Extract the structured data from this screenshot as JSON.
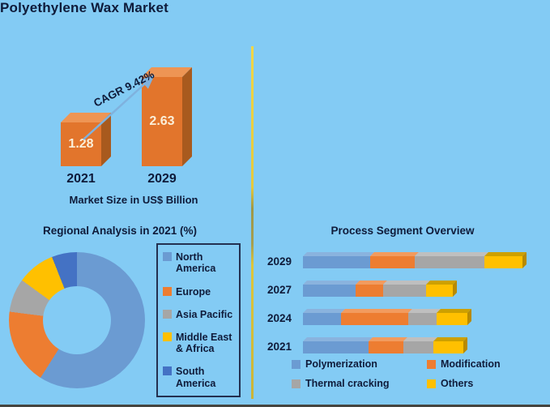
{
  "header": {
    "title": "Polyethylene Wax Market"
  },
  "colors": {
    "background": "#83CBF4",
    "text": "#0F1B3A",
    "divider": "#E6C93C",
    "arrow": "#7FB2DE",
    "legend_border": "#233050"
  },
  "market": {
    "cagr_label": "CAGR 9.42%",
    "caption": "Market Size in US$ Billion",
    "value_text_color": "#FBEFD9"
  },
  "regional": {
    "title": "Regional Analysis in 2021 (%)"
  },
  "process": {
    "title": "Process Segment Overview"
  },
  "chart_data": [
    {
      "type": "bar",
      "title": "Market Size in US$ Billion",
      "categories": [
        "2021",
        "2029"
      ],
      "values": [
        1.28,
        2.63
      ],
      "unit": "US$ Billion",
      "annotation": "CAGR 9.42%",
      "bar_colors": {
        "front": "#E2752C",
        "top": "#EE9554",
        "side": "#A85A1E"
      }
    },
    {
      "type": "pie",
      "subtype": "donut",
      "title": "Regional Analysis in 2021 (%)",
      "labels": [
        "North America",
        "Europe",
        "Asia Pacific",
        "Middle East & Africa",
        "South America"
      ],
      "values_pct_est": [
        59,
        18,
        8,
        9,
        6
      ],
      "colors": [
        "#6B9BD2",
        "#ED7D31",
        "#A6A6A6",
        "#FFC000",
        "#4472C4"
      ],
      "legend_position": "right"
    },
    {
      "type": "bar",
      "subtype": "horizontal-stacked",
      "title": "Process Segment Overview",
      "categories": [
        "2029",
        "2027",
        "2024",
        "2021"
      ],
      "series": [
        {
          "name": "Polymerization",
          "color": "#6B9BD2",
          "top": "#8AB3DE",
          "side": "#4E7FB8",
          "values": [
            83,
            65,
            47,
            81
          ]
        },
        {
          "name": "Modification",
          "color": "#ED7D31",
          "top": "#F29B5E",
          "side": "#C05F1D",
          "values": [
            55,
            34,
            83,
            43
          ]
        },
        {
          "name": "Thermal cracking",
          "color": "#A6A6A6",
          "top": "#BFBFBF",
          "side": "#8C8C8C",
          "values": [
            86,
            53,
            35,
            37
          ]
        },
        {
          "name": "Others",
          "color": "#FFC000",
          "top": "#CDA000",
          "side": "#B88A00",
          "values": [
            47,
            33,
            38,
            37
          ]
        }
      ],
      "legend_position": "bottom"
    }
  ]
}
